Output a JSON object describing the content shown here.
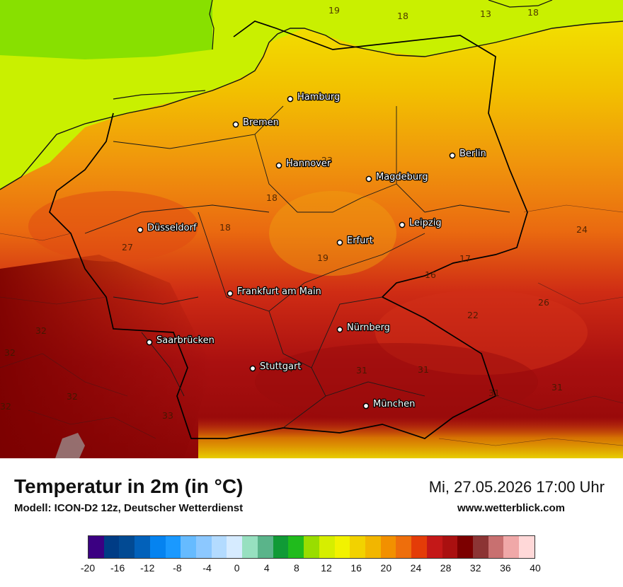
{
  "header": {
    "title": "Temperatur in 2m (in °C)",
    "model": "Modell: ICON-D2 12z, Deutscher Wetterdienst",
    "datetime": "Mi, 27.05.2026 17:00 Uhr",
    "website": "www.wetterblick.com"
  },
  "cities": [
    {
      "name": "Hamburg"
    },
    {
      "name": "Bremen"
    },
    {
      "name": "Berlin"
    },
    {
      "name": "Hannover"
    },
    {
      "name": "Magdeburg"
    },
    {
      "name": "Düsseldorf"
    },
    {
      "name": "Leipzig"
    },
    {
      "name": "Erfurt"
    },
    {
      "name": "Frankfurt am Main"
    },
    {
      "name": "Nürnberg"
    },
    {
      "name": "Saarbrücken"
    },
    {
      "name": "Stuttgart"
    },
    {
      "name": "München"
    }
  ],
  "temperature_labels": [
    "19",
    "18",
    "13",
    "18",
    "23",
    "18",
    "18",
    "27",
    "19",
    "24",
    "17",
    "16",
    "26",
    "22",
    "32",
    "32",
    "24",
    "31",
    "31",
    "31",
    "31",
    "32",
    "32",
    "33"
  ],
  "legend": {
    "ticks": [
      "-20",
      "-16",
      "-12",
      "-8",
      "-4",
      "0",
      "4",
      "8",
      "12",
      "16",
      "20",
      "24",
      "28",
      "32",
      "36",
      "40"
    ],
    "colors": [
      "#3b0082",
      "#003c85",
      "#024a93",
      "#0261ba",
      "#0583f0",
      "#1a99ff",
      "#66bbff",
      "#8cc8ff",
      "#b3dbff",
      "#d6ebff",
      "#97e0c0",
      "#5ab48a",
      "#109a36",
      "#20bb1c",
      "#99dd00",
      "#d6ee00",
      "#f2f200",
      "#f2d200",
      "#f2b600",
      "#f29000",
      "#ee6e0c",
      "#e43c08",
      "#c41818",
      "#aa1010",
      "#7c0000",
      "#8c3434",
      "#c87070",
      "#f0a8a8",
      "#ffd8d8"
    ]
  },
  "colors": {
    "sea_near": "#c9f000",
    "sea_far": "#88e000",
    "north": "#f2d000",
    "central": "#ef7a10",
    "south": "#9c0e0e"
  }
}
